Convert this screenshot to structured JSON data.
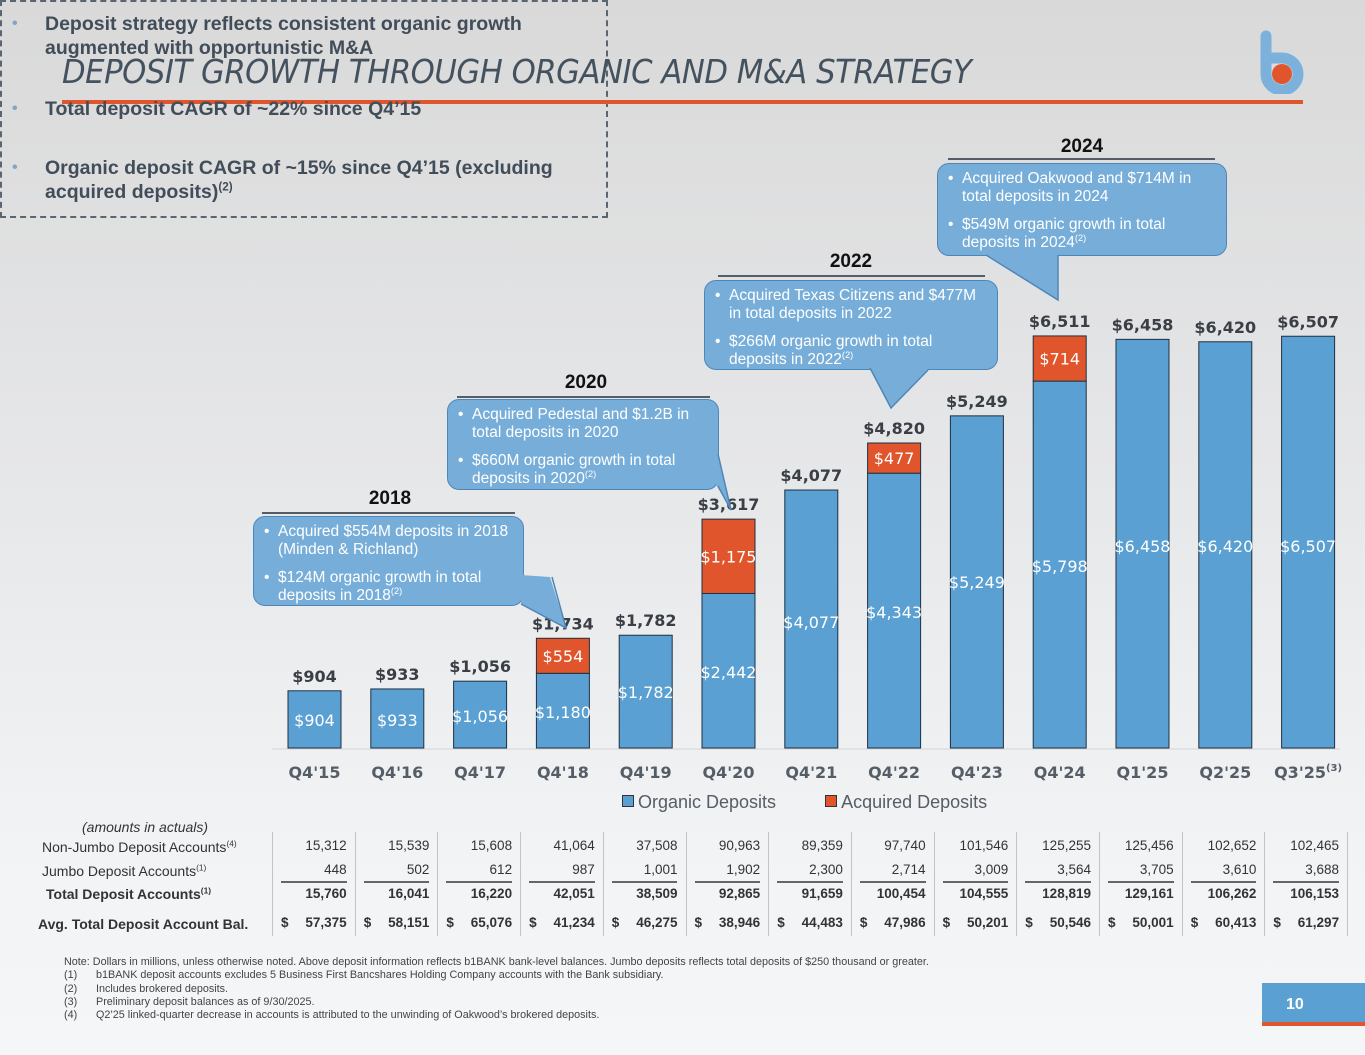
{
  "header": {
    "title": "DEPOSIT GROWTH THROUGH ORGANIC AND M&A STRATEGY",
    "logo": "b1bank-logo",
    "brand_colors": {
      "blue": "#5aa0d2",
      "orange": "#e0552b"
    }
  },
  "summary": {
    "items": [
      {
        "text": "Deposit strategy reflects consistent organic growth augmented with opportunistic M&A",
        "sup": ""
      },
      {
        "text": "Total deposit CAGR of ~22% since Q4’15",
        "sup": ""
      },
      {
        "text": "Organic deposit CAGR of ~15% since Q4’15 (excluding acquired deposits)",
        "sup": "(2)"
      }
    ]
  },
  "callouts": [
    {
      "year": "2018",
      "bullets": [
        {
          "text": "Acquired $554M deposits in 2018 (Minden & Richland)",
          "sup": ""
        },
        {
          "text": "$124M organic growth in total deposits in 2018",
          "sup": "(2)"
        }
      ]
    },
    {
      "year": "2020",
      "bullets": [
        {
          "text": "Acquired Pedestal and $1.2B in total deposits in 2020",
          "sup": ""
        },
        {
          "text": "$660M organic growth in total deposits in 2020",
          "sup": "(2)"
        }
      ]
    },
    {
      "year": "2022",
      "bullets": [
        {
          "text": "Acquired Texas Citizens and $477M in total deposits in 2022",
          "sup": ""
        },
        {
          "text": "$266M organic growth in total deposits in 2022",
          "sup": "(2)"
        }
      ]
    },
    {
      "year": "2024",
      "bullets": [
        {
          "text": "Acquired Oakwood and $714M in total deposits in 2024",
          "sup": ""
        },
        {
          "text": "$549M organic growth in total deposits in 2024",
          "sup": "(2)"
        }
      ]
    }
  ],
  "chart_data": {
    "type": "bar",
    "stacked": true,
    "title": "",
    "xlabel": "",
    "ylabel": "",
    "units": "$ millions",
    "categories": [
      "Q4'15",
      "Q4'16",
      "Q4'17",
      "Q4'18",
      "Q4'19",
      "Q4'20",
      "Q4'21",
      "Q4'22",
      "Q4'23",
      "Q4'24",
      "Q1'25",
      "Q2'25",
      "Q3'25"
    ],
    "category_sups": [
      "",
      "",
      "",
      "",
      "",
      "",
      "",
      "",
      "",
      "",
      "",
      "",
      "(3)"
    ],
    "series": [
      {
        "name": "Organic Deposits",
        "color": "#5aa0d2",
        "values": [
          904,
          933,
          1056,
          1180,
          1782,
          2442,
          4077,
          4343,
          5249,
          5798,
          6458,
          6420,
          6507
        ],
        "labels": [
          "$904",
          "$933",
          "$1,056",
          "$1,180",
          "$1,782",
          "$2,442",
          "$4,077",
          "$4,343",
          "$5,249",
          "$5,798",
          "$6,458",
          "$6,420",
          "$6,507"
        ]
      },
      {
        "name": "Acquired Deposits",
        "color": "#e0552b",
        "values": [
          0,
          0,
          0,
          554,
          0,
          1175,
          0,
          477,
          0,
          714,
          0,
          0,
          0
        ],
        "labels": [
          "",
          "",
          "",
          "$554",
          "",
          "$1,175",
          "",
          "$477",
          "",
          "$714",
          "",
          "",
          ""
        ]
      }
    ],
    "totals": [
      904,
      933,
      1056,
      1734,
      1782,
      3617,
      4077,
      4820,
      5249,
      6511,
      6458,
      6420,
      6507
    ],
    "total_labels": [
      "$904",
      "$933",
      "$1,056",
      "$1,734",
      "$1,782",
      "$3,617",
      "$4,077",
      "$4,820",
      "$5,249",
      "$6,511",
      "$6,458",
      "$6,420",
      "$6,507"
    ],
    "ylim": [
      0,
      7000
    ],
    "grid": false,
    "y_axis_visible": false,
    "legend": "bottom-center"
  },
  "table": {
    "caption": "(amounts in actuals)",
    "rows": [
      {
        "label": "Non-Jumbo Deposit Accounts",
        "sup": "(4)",
        "bold": false,
        "dollar": false,
        "values": [
          "15,312",
          "15,539",
          "15,608",
          "41,064",
          "37,508",
          "90,963",
          "89,359",
          "97,740",
          "101,546",
          "125,255",
          "125,456",
          "102,652",
          "102,465"
        ]
      },
      {
        "label": "Jumbo Deposit Accounts",
        "sup": "(1)",
        "bold": false,
        "dollar": false,
        "values": [
          "448",
          "502",
          "612",
          "987",
          "1,001",
          "1,902",
          "2,300",
          "2,714",
          "3,009",
          "3,564",
          "3,705",
          "3,610",
          "3,688"
        ]
      },
      {
        "label": "Total Deposit Accounts",
        "sup": "(1)",
        "bold": true,
        "dollar": false,
        "values": [
          "15,760",
          "16,041",
          "16,220",
          "42,051",
          "38,509",
          "92,865",
          "91,659",
          "100,454",
          "104,555",
          "128,819",
          "129,161",
          "106,262",
          "106,153"
        ]
      },
      {
        "label": "Avg. Total Deposit Account Bal.",
        "sup": "",
        "bold": true,
        "dollar": true,
        "currency_symbol": "$",
        "values": [
          "57,375",
          "58,151",
          "65,076",
          "41,234",
          "46,275",
          "38,946",
          "44,483",
          "47,986",
          "50,201",
          "50,546",
          "50,001",
          "60,413",
          "61,297"
        ]
      }
    ]
  },
  "notes": {
    "intro": "Note: Dollars in millions, unless otherwise noted. Above deposit information reflects b1BANK bank-level balances. Jumbo deposits reflects total deposits of $250 thousand or greater.",
    "items": [
      {
        "key": "(1)",
        "text": "b1BANK deposit accounts excludes 5 Business First Bancshares Holding Company accounts with the Bank subsidiary."
      },
      {
        "key": "(2)",
        "text": "Includes brokered deposits."
      },
      {
        "key": "(3)",
        "text": "Preliminary deposit balances as of 9/30/2025."
      },
      {
        "key": "(4)",
        "text": "Q2’25 linked-quarter decrease in accounts is attributed to the unwinding of Oakwood’s brokered deposits."
      }
    ]
  },
  "footer": {
    "page_number": "10"
  }
}
